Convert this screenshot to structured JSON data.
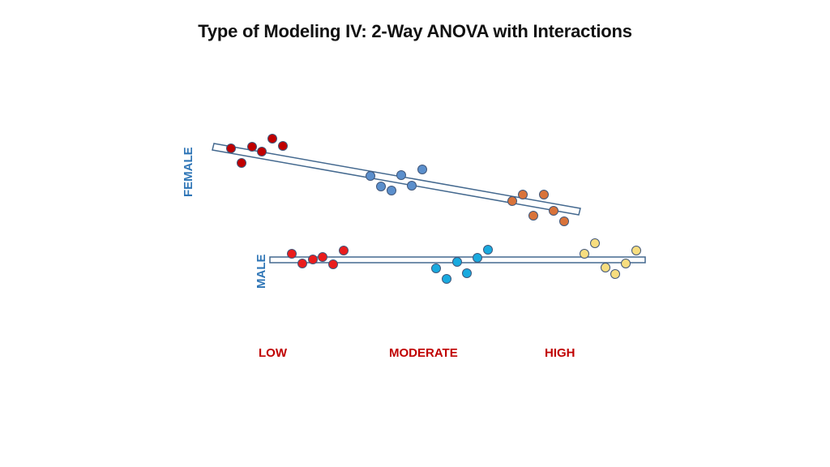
{
  "title": "Type of Modeling IV:  2-Way ANOVA with Interactions",
  "colors": {
    "band_stroke": "#44698f",
    "group_label": "#2e75b6",
    "level_label": "#c00000",
    "point_stroke": "#41577a",
    "female_low": "#c00000",
    "female_moderate": "#5b8fcc",
    "female_high": "#d9733a",
    "male_low": "#ea1c1c",
    "male_moderate": "#19aadf",
    "male_high": "#f7dd7f"
  },
  "groups": {
    "female": "FEMALE",
    "male": "MALE"
  },
  "levels": {
    "low": "LOW",
    "moderate": "MODERATE",
    "high": "HIGH"
  }
}
